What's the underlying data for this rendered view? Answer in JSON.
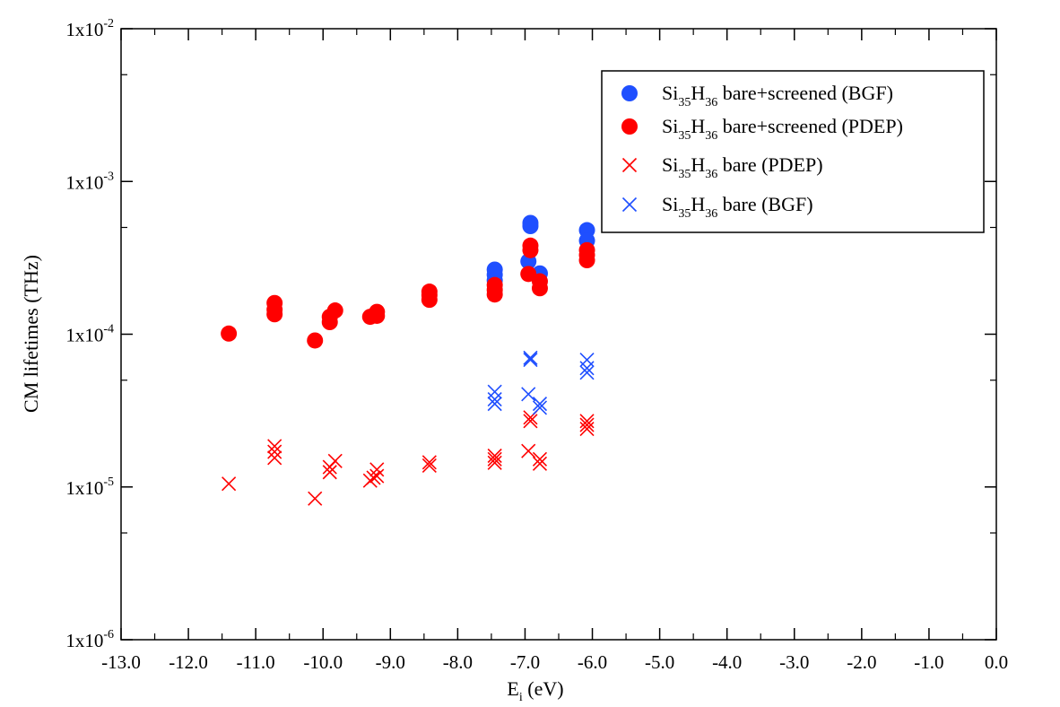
{
  "chart_data": {
    "type": "scatter",
    "title": "",
    "xlabel": {
      "main": "E",
      "sub": "i",
      "rest": " (eV)"
    },
    "ylabel": "CM lifetimes (THz)",
    "xlim": [
      -13.0,
      0.0
    ],
    "ylim": [
      1e-06,
      0.01
    ],
    "yscale": "log",
    "x_ticks": [
      {
        "value": -13,
        "label": "-13.0"
      },
      {
        "value": -12,
        "label": "-12.0"
      },
      {
        "value": -11,
        "label": "-11.0"
      },
      {
        "value": -10,
        "label": "-10.0"
      },
      {
        "value": -9,
        "label": "-9.0"
      },
      {
        "value": -8,
        "label": "-8.0"
      },
      {
        "value": -7,
        "label": "-7.0"
      },
      {
        "value": -6,
        "label": "-6.0"
      },
      {
        "value": -5,
        "label": "-5.0"
      },
      {
        "value": -4,
        "label": "-4.0"
      },
      {
        "value": -3,
        "label": "-3.0"
      },
      {
        "value": -2,
        "label": "-2.0"
      },
      {
        "value": -1,
        "label": "-1.0"
      },
      {
        "value": 0,
        "label": "0.0"
      }
    ],
    "y_ticks": [
      {
        "value": 0.01,
        "base": "1x10",
        "exp": "-2"
      },
      {
        "value": 0.001,
        "base": "1x10",
        "exp": "-3"
      },
      {
        "value": 0.0001,
        "base": "1x10",
        "exp": "-4"
      },
      {
        "value": 1e-05,
        "base": "1x10",
        "exp": "-5"
      },
      {
        "value": 1e-06,
        "base": "1x10",
        "exp": "-6"
      }
    ],
    "legend_position": "top-right",
    "series": [
      {
        "name": "Si35H36 bare+screened (BGF)",
        "label_parts": {
          "a": "Si",
          "s1": "35",
          "b": "H",
          "s2": "36",
          "rest": " bare+screened (BGF)"
        },
        "marker": "circle",
        "color": "#1f4fff",
        "points": [
          [
            -7.45,
            0.000265
          ],
          [
            -7.45,
            0.000245
          ],
          [
            -7.45,
            0.000225
          ],
          [
            -6.92,
            0.000535
          ],
          [
            -6.92,
            0.00051
          ],
          [
            -6.95,
            0.0003
          ],
          [
            -6.78,
            0.00025
          ],
          [
            -6.08,
            0.00048
          ],
          [
            -6.08,
            0.00041
          ]
        ]
      },
      {
        "name": "Si35H36 bare+screened (PDEP)",
        "label_parts": {
          "a": "Si",
          "s1": "35",
          "b": "H",
          "s2": "36",
          "rest": " bare+screened  (PDEP)"
        },
        "marker": "circle",
        "color": "#ff0000",
        "points": [
          [
            -11.4,
            0.000101
          ],
          [
            -10.72,
            0.00016
          ],
          [
            -10.72,
            0.000145
          ],
          [
            -10.72,
            0.000135
          ],
          [
            -10.12,
            9.1e-05
          ],
          [
            -9.9,
            0.00013
          ],
          [
            -9.9,
            0.00012
          ],
          [
            -9.82,
            0.000143
          ],
          [
            -9.3,
            0.00013
          ],
          [
            -9.2,
            0.00014
          ],
          [
            -9.2,
            0.000132
          ],
          [
            -8.42,
            0.00019
          ],
          [
            -8.42,
            0.00018
          ],
          [
            -8.42,
            0.000168
          ],
          [
            -7.45,
            0.00021
          ],
          [
            -7.45,
            0.000195
          ],
          [
            -7.45,
            0.000182
          ],
          [
            -6.95,
            0.000248
          ],
          [
            -6.92,
            0.00038
          ],
          [
            -6.92,
            0.000355
          ],
          [
            -6.78,
            0.000222
          ],
          [
            -6.78,
            0.0002
          ],
          [
            -6.08,
            0.000355
          ],
          [
            -6.08,
            0.00033
          ],
          [
            -6.08,
            0.000305
          ]
        ]
      },
      {
        "name": "Si35H36 bare (PDEP)",
        "label_parts": {
          "a": "Si",
          "s1": "35",
          "b": "H",
          "s2": "36",
          "rest": "  bare  (PDEP)"
        },
        "marker": "x",
        "color": "#ff0000",
        "points": [
          [
            -11.4,
            1.05e-05
          ],
          [
            -10.72,
            1.85e-05
          ],
          [
            -10.72,
            1.7e-05
          ],
          [
            -10.72,
            1.55e-05
          ],
          [
            -10.12,
            8.4e-06
          ],
          [
            -9.9,
            1.35e-05
          ],
          [
            -9.9,
            1.25e-05
          ],
          [
            -9.82,
            1.48e-05
          ],
          [
            -9.3,
            1.1e-05
          ],
          [
            -9.25,
            1.15e-05
          ],
          [
            -9.2,
            1.3e-05
          ],
          [
            -9.2,
            1.18e-05
          ],
          [
            -8.42,
            1.45e-05
          ],
          [
            -8.42,
            1.38e-05
          ],
          [
            -7.45,
            1.6e-05
          ],
          [
            -7.45,
            1.52e-05
          ],
          [
            -7.45,
            1.44e-05
          ],
          [
            -6.95,
            1.72e-05
          ],
          [
            -6.92,
            2.85e-05
          ],
          [
            -6.92,
            2.7e-05
          ],
          [
            -6.78,
            1.52e-05
          ],
          [
            -6.78,
            1.42e-05
          ],
          [
            -6.08,
            2.7e-05
          ],
          [
            -6.08,
            2.55e-05
          ],
          [
            -6.08,
            2.4e-05
          ]
        ]
      },
      {
        "name": "Si35H36 bare (BGF)",
        "label_parts": {
          "a": "Si",
          "s1": "35",
          "b": "H",
          "s2": "36",
          "rest": " bare  (BGF)"
        },
        "marker": "x",
        "color": "#1f4fff",
        "points": [
          [
            -7.45,
            4.2e-05
          ],
          [
            -7.45,
            3.75e-05
          ],
          [
            -7.45,
            3.5e-05
          ],
          [
            -6.95,
            4.05e-05
          ],
          [
            -6.92,
            7e-05
          ],
          [
            -6.92,
            6.8e-05
          ],
          [
            -6.78,
            3.5e-05
          ],
          [
            -6.78,
            3.3e-05
          ],
          [
            -6.08,
            6.8e-05
          ],
          [
            -6.08,
            6e-05
          ],
          [
            -6.08,
            5.6e-05
          ]
        ]
      }
    ]
  }
}
